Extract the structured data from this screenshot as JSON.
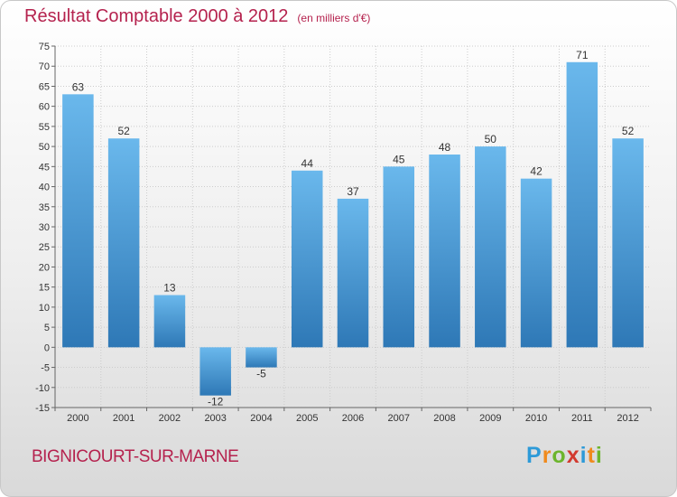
{
  "title": "Résultat Comptable 2000 à 2012",
  "unit_label": "(en milliers d'€)",
  "commune": "BIGNICOURT-SUR-MARNE",
  "brand": {
    "letters": [
      "P",
      "r",
      "o",
      "x",
      "i",
      "t",
      "i"
    ],
    "colors": [
      "#2d9ad8",
      "#f08a1c",
      "#6cb52d",
      "#d23a2f",
      "#2d9ad8",
      "#f08a1c",
      "#6cb52d"
    ]
  },
  "colors": {
    "accent": "#b5224e",
    "bar_light": "#6ab8ec",
    "bar_dark": "#2e78b6",
    "grid": "#cccccc"
  },
  "chart_data": {
    "type": "bar",
    "categories": [
      "2000",
      "2001",
      "2002",
      "2003",
      "2004",
      "2005",
      "2006",
      "2007",
      "2008",
      "2009",
      "2010",
      "2011",
      "2012"
    ],
    "values": [
      63,
      52,
      13,
      -12,
      -5,
      44,
      37,
      45,
      48,
      50,
      42,
      71,
      52
    ],
    "ylim": [
      -15,
      75
    ],
    "yticks": [
      75,
      70,
      65,
      60,
      55,
      50,
      45,
      40,
      35,
      30,
      25,
      20,
      15,
      10,
      5,
      0,
      -5,
      -10,
      -15
    ],
    "grid": true,
    "legend": "none"
  }
}
